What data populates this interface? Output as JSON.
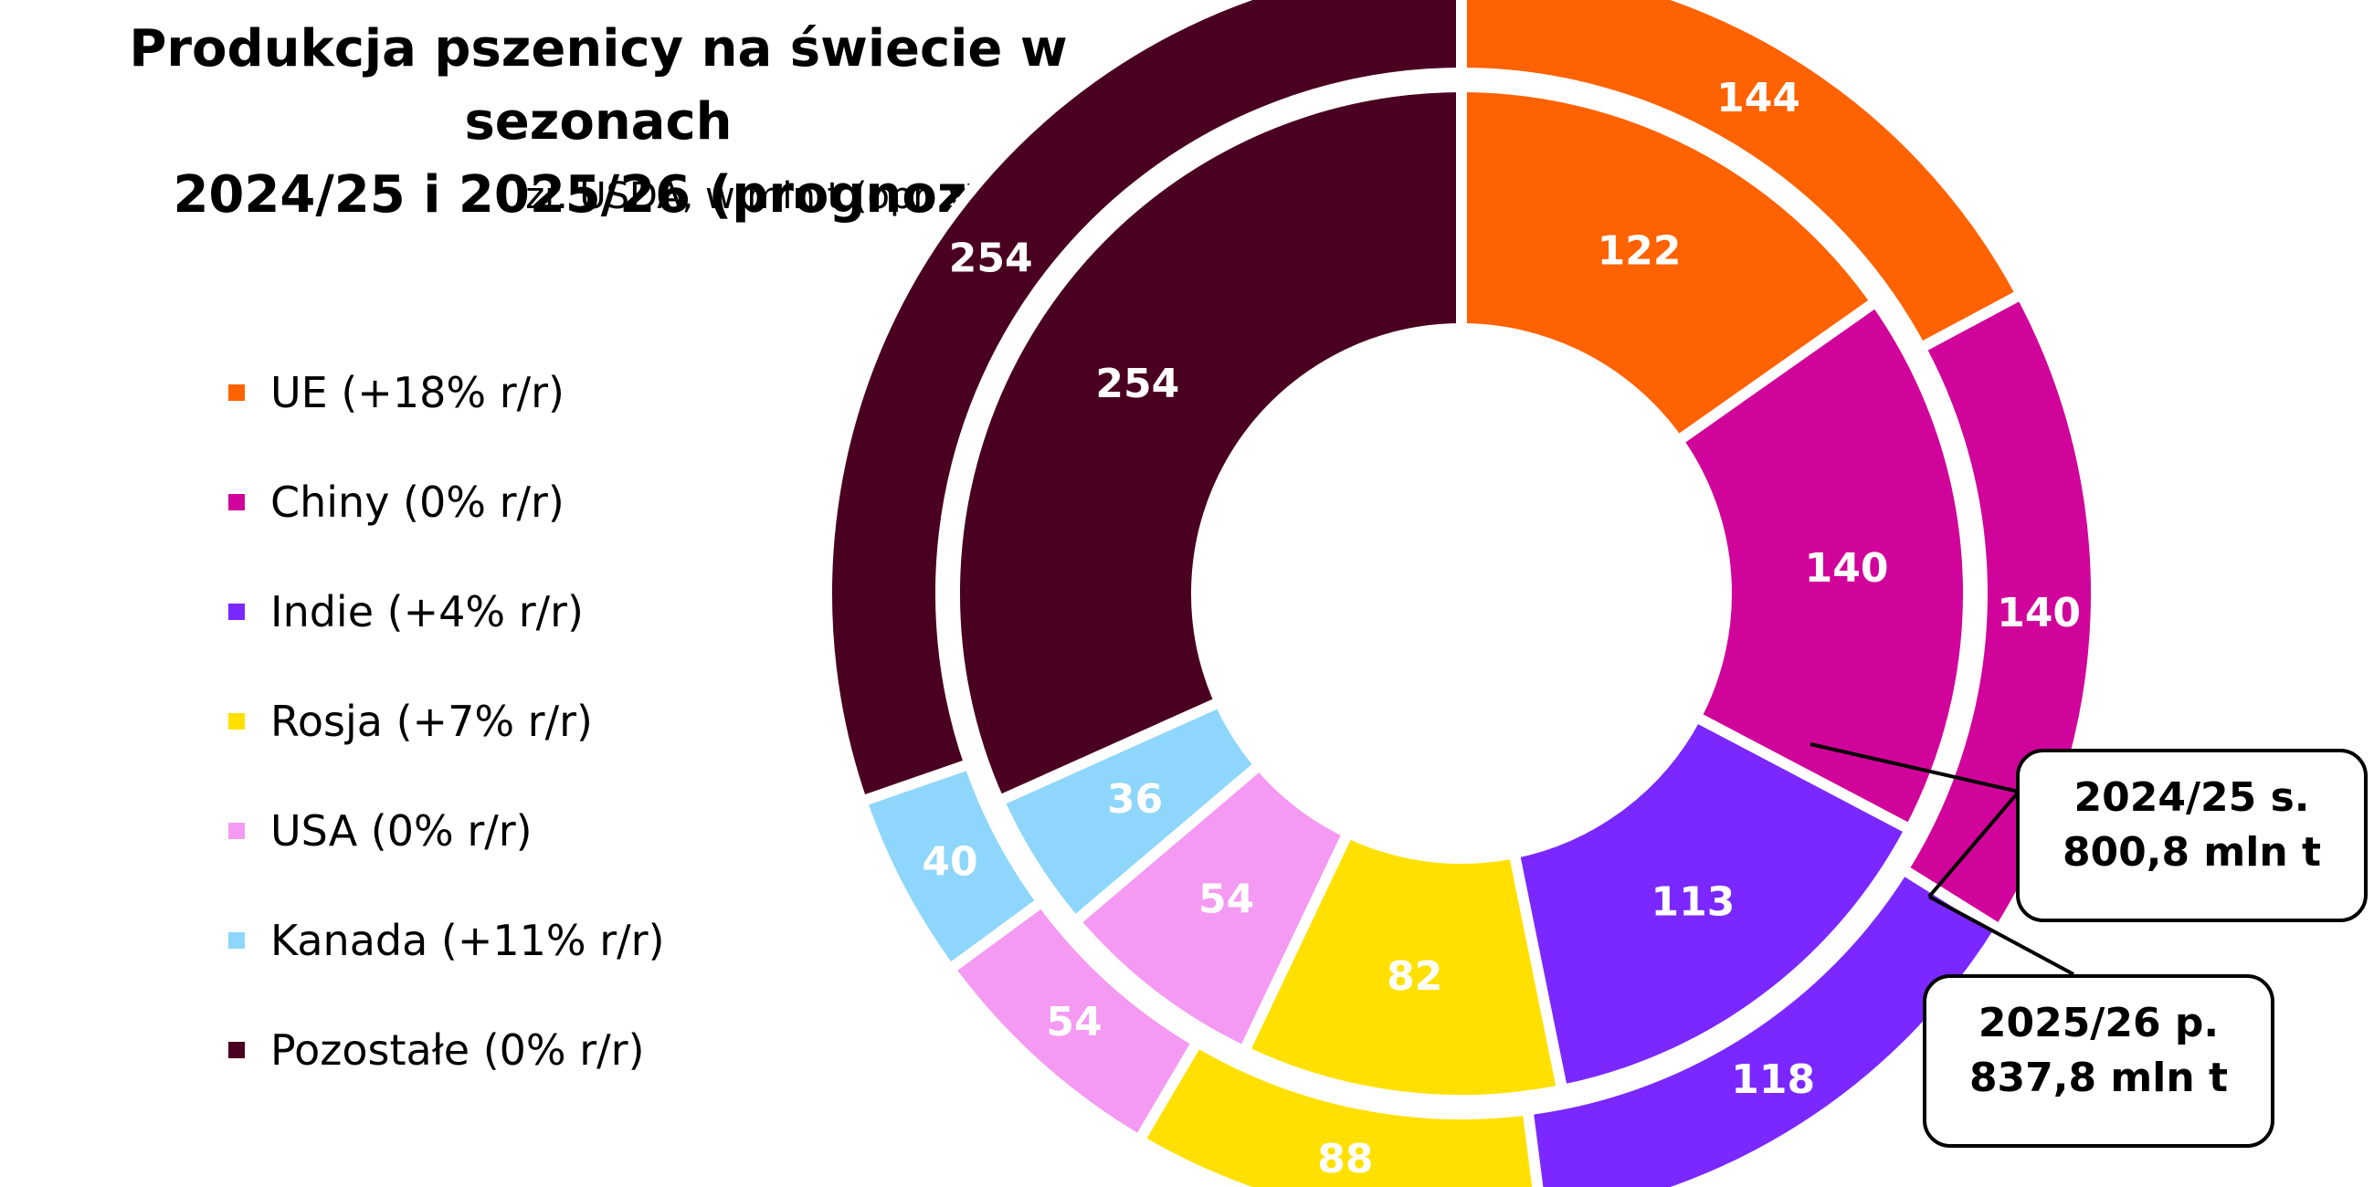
{
  "chart_data": {
    "type": "pie",
    "variant": "nested-donut",
    "title_line1": "Produkcja pszenicy na świecie w sezonach",
    "title_line2": "2024/25 i 2025/26 (prognozy)",
    "subtitle": "źr. USDA, w mln t (opr. wł.)",
    "legend_position": "left",
    "categories": [
      "UE",
      "Chiny",
      "Indie",
      "Rosja",
      "USA",
      "Kanada",
      "Pozostałe"
    ],
    "legend": [
      {
        "label": "UE (+18% r/r)",
        "color": "#FF6200"
      },
      {
        "label": "Chiny (0% r/r)",
        "color": "#D0049A"
      },
      {
        "label": "Indie (+4% r/r)",
        "color": "#7A28FF"
      },
      {
        "label": "Rosja (+7% r/r)",
        "color": "#FFE000"
      },
      {
        "label": "USA (0% r/r)",
        "color": "#F59AF2"
      },
      {
        "label": "Kanada (+11% r/r)",
        "color": "#8ED6FB"
      },
      {
        "label": "Pozostałe (0% r/r)",
        "color": "#4A0020"
      }
    ],
    "series": [
      {
        "ring": "inner",
        "values": [
          122,
          140,
          113,
          82,
          54,
          36,
          254
        ],
        "labels": [
          "122",
          "140",
          "113",
          "82",
          "54",
          "36",
          "254"
        ]
      },
      {
        "ring": "outer",
        "values": [
          144,
          140,
          118,
          88,
          54,
          40,
          254
        ],
        "labels": [
          "144",
          "140",
          "118",
          "88",
          "54",
          "40",
          "254"
        ]
      }
    ],
    "annotations": [
      {
        "line1": "2024/25 s.",
        "line2": "800,8 mln t"
      },
      {
        "line1": "2025/26 p.",
        "line2": "837,8 mln t"
      }
    ]
  }
}
